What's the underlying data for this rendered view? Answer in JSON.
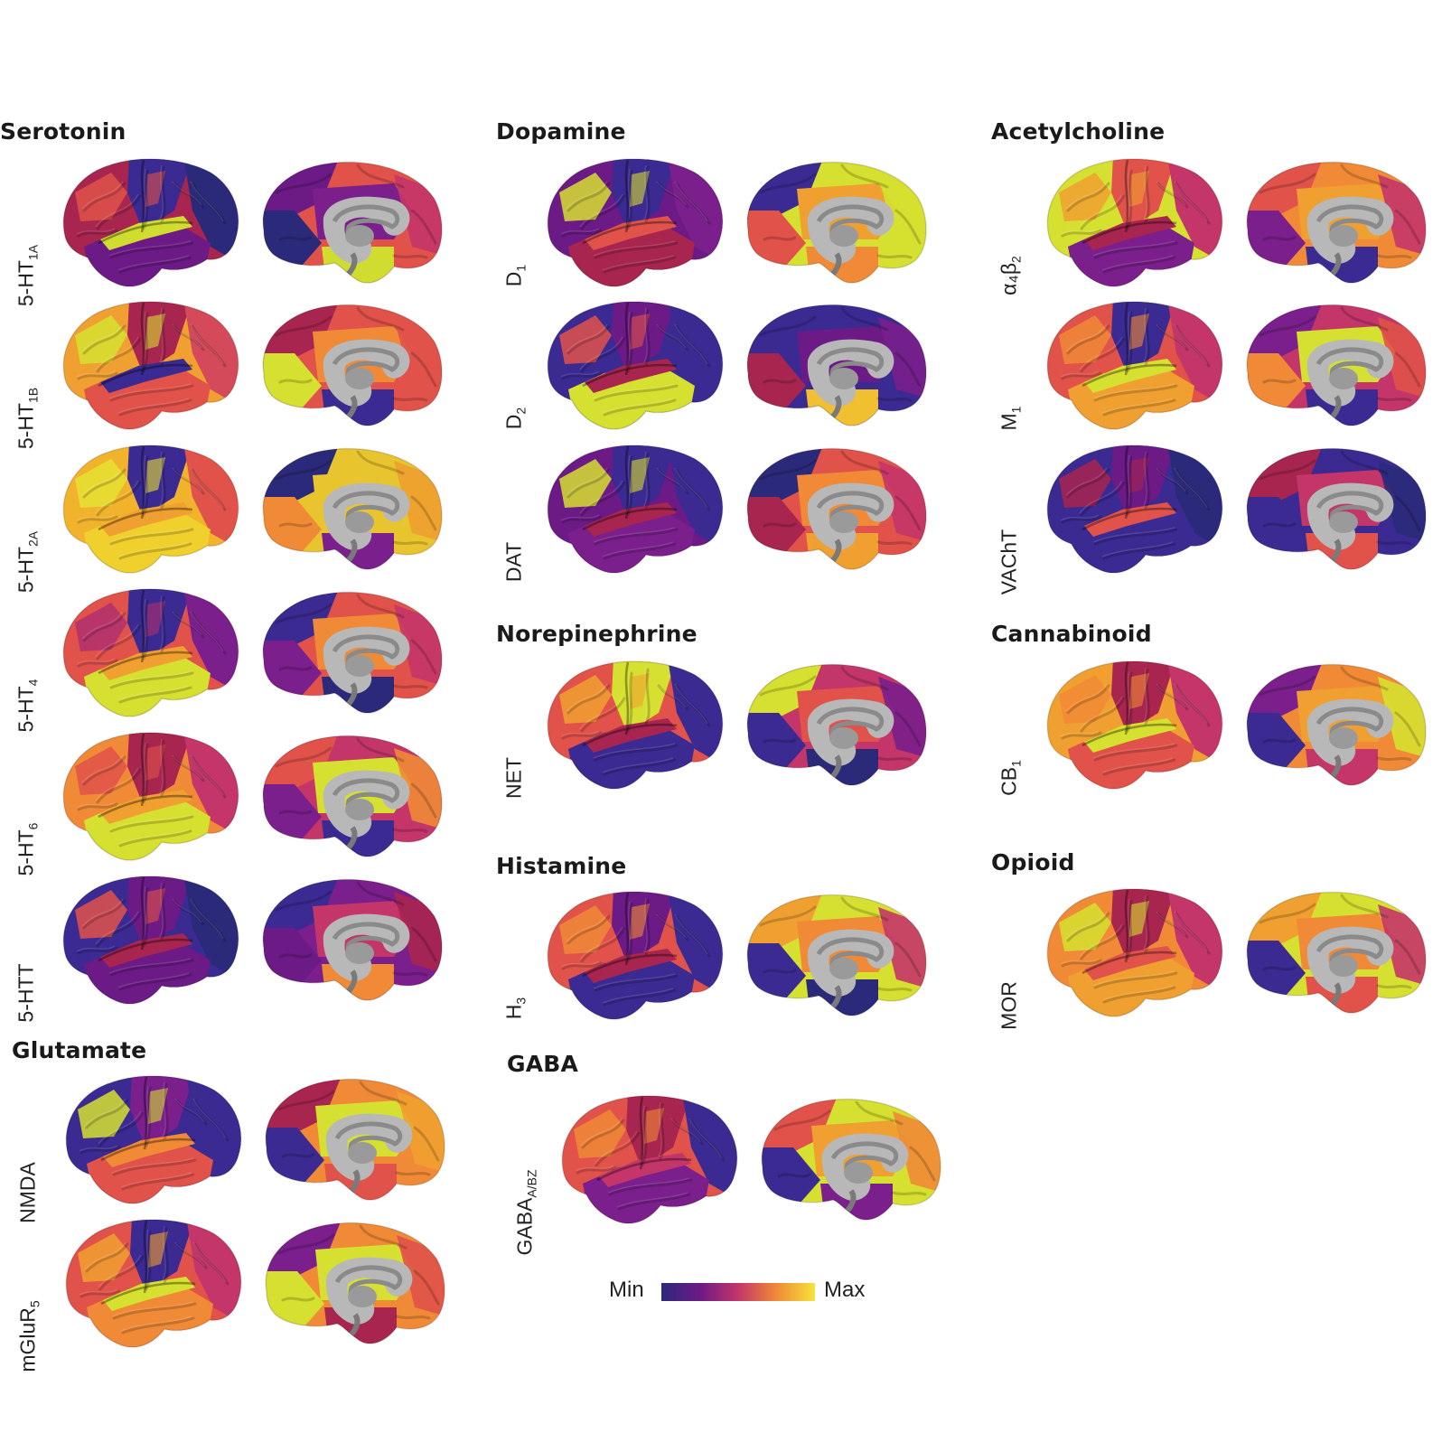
{
  "groups": [
    {
      "id": "serotonin",
      "title": "Serotonin",
      "rows": [
        {
          "main": "5-HT",
          "sub": "1A",
          "lat": {
            "front": "#a8254f",
            "parietal": "#3a2a92",
            "temporal": "#6c1a86",
            "sup_temporal": "#d0dd30",
            "occipital": "#2b2a7a",
            "accent": "#e0524a"
          },
          "med": {
            "front": "#e0524a",
            "parietal": "#6c1a86",
            "occipital": "#2b2a7a",
            "cingulate": "#7a1f8c",
            "temporal": "#d0dd30",
            "accent": "#c4356a"
          }
        },
        {
          "main": "5-HT",
          "sub": "1B",
          "lat": {
            "front": "#f0a030",
            "parietal": "#a8254f",
            "temporal": "#e0524a",
            "sup_temporal": "#3a2a92",
            "occipital": "#d44a5a",
            "accent": "#d6e030"
          },
          "med": {
            "front": "#e0524a",
            "parietal": "#a8254f",
            "occipital": "#d6e030",
            "cingulate": "#f08a36",
            "temporal": "#3a2a92",
            "accent": "#e0524a"
          }
        },
        {
          "main": "5-HT",
          "sub": "2A",
          "lat": {
            "front": "#f2b32c",
            "parietal": "#3a2a92",
            "temporal": "#f0d02c",
            "sup_temporal": "#f0a030",
            "occipital": "#e0524a",
            "accent": "#e8e034"
          },
          "med": {
            "front": "#e8c42e",
            "parietal": "#2b2a7a",
            "occipital": "#f08a36",
            "cingulate": "#e8c42e",
            "temporal": "#7a1f8c",
            "accent": "#f0a030"
          }
        },
        {
          "main": "5-HT",
          "sub": "4",
          "lat": {
            "front": "#e0524a",
            "parietal": "#3a2a92",
            "temporal": "#d6e030",
            "sup_temporal": "#f0a030",
            "occipital": "#7a1f8c",
            "accent": "#b0306e"
          },
          "med": {
            "front": "#e0524a",
            "parietal": "#3a2a92",
            "occipital": "#7a1f8c",
            "cingulate": "#f08a36",
            "temporal": "#2b2a7a",
            "accent": "#c4356a"
          }
        },
        {
          "main": "5-HT",
          "sub": "6",
          "lat": {
            "front": "#f08a36",
            "parietal": "#a8254f",
            "temporal": "#d6e030",
            "sup_temporal": "#f0a030",
            "occipital": "#c4356a",
            "accent": "#e0524a"
          },
          "med": {
            "front": "#c4356a",
            "parietal": "#e0524a",
            "occipital": "#7a1f8c",
            "cingulate": "#d6e030",
            "temporal": "#3a2a92",
            "accent": "#f08a36"
          }
        },
        {
          "main": "5-HTT",
          "sub": "",
          "lat": {
            "front": "#3a2a92",
            "parietal": "#6c1a86",
            "temporal": "#6c1a86",
            "sup_temporal": "#a8254f",
            "occipital": "#2b2a7a",
            "accent": "#e0524a"
          },
          "med": {
            "front": "#7a1f8c",
            "parietal": "#3a2a92",
            "occipital": "#6c1a86",
            "cingulate": "#c4356a",
            "temporal": "#f08a36",
            "accent": "#a8254f"
          }
        }
      ]
    },
    {
      "id": "dopamine",
      "title": "Dopamine",
      "rows": [
        {
          "main": "D",
          "sub": "1",
          "lat": {
            "front": "#6c1a86",
            "parietal": "#3a2a92",
            "temporal": "#a8254f",
            "sup_temporal": "#e0524a",
            "occipital": "#7a1f8c",
            "accent": "#d6e030"
          },
          "med": {
            "front": "#d6e030",
            "parietal": "#3a2a92",
            "occipital": "#e0524a",
            "cingulate": "#f0a030",
            "temporal": "#f08a36",
            "accent": "#d6e030"
          }
        },
        {
          "main": "D",
          "sub": "2",
          "lat": {
            "front": "#3a2a92",
            "parietal": "#6c1a86",
            "temporal": "#d6e030",
            "sup_temporal": "#a8254f",
            "occipital": "#3a2a92",
            "accent": "#e0524a"
          },
          "med": {
            "front": "#3a2a92",
            "parietal": "#3a2a92",
            "occipital": "#a8254f",
            "cingulate": "#6c1a86",
            "temporal": "#f0c030",
            "accent": "#7a1f8c"
          }
        },
        {
          "main": "DAT",
          "sub": "",
          "lat": {
            "front": "#6c1a86",
            "parietal": "#3a2a92",
            "temporal": "#7a1f8c",
            "sup_temporal": "#a8254f",
            "occipital": "#3a2a92",
            "accent": "#d6e030"
          },
          "med": {
            "front": "#e0524a",
            "parietal": "#2b2a7a",
            "occipital": "#a8254f",
            "cingulate": "#f08a36",
            "temporal": "#f0a030",
            "accent": "#c4356a"
          }
        }
      ]
    },
    {
      "id": "acetylcholine",
      "title": "Acetylcholine",
      "rows": [
        {
          "main": "α₄β",
          "sub": "2",
          "lat": {
            "front": "#d6e030",
            "parietal": "#e0524a",
            "temporal": "#7a1f8c",
            "sup_temporal": "#a8254f",
            "occipital": "#c4356a",
            "accent": "#f0a030"
          },
          "med": {
            "front": "#f08a36",
            "parietal": "#e0524a",
            "occipital": "#7a1f8c",
            "cingulate": "#f0a030",
            "temporal": "#3a2a92",
            "accent": "#c4356a"
          }
        },
        {
          "main": "M",
          "sub": "1",
          "lat": {
            "front": "#e0524a",
            "parietal": "#3a2a92",
            "temporal": "#f0a030",
            "sup_temporal": "#d6e030",
            "occipital": "#c4356a",
            "accent": "#f08a36"
          },
          "med": {
            "front": "#c4356a",
            "parietal": "#7a1f8c",
            "occipital": "#f08a36",
            "cingulate": "#d6e030",
            "temporal": "#3a2a92",
            "accent": "#e0524a"
          }
        },
        {
          "main": "VAChT",
          "sub": "",
          "lat": {
            "front": "#3a2a92",
            "parietal": "#6c1a86",
            "temporal": "#3a2a92",
            "sup_temporal": "#e0524a",
            "occipital": "#2b2a7a",
            "accent": "#a8254f"
          },
          "med": {
            "front": "#3a2a92",
            "parietal": "#a8254f",
            "occipital": "#3a2a92",
            "cingulate": "#c4356a",
            "temporal": "#e0524a",
            "accent": "#2b2a7a"
          }
        }
      ]
    },
    {
      "id": "norepinephrine",
      "title": "Norepinephrine",
      "rows": [
        {
          "main": "NET",
          "sub": "",
          "lat": {
            "front": "#e0524a",
            "parietal": "#d6e030",
            "temporal": "#3a2a92",
            "sup_temporal": "#a8254f",
            "occipital": "#3a2a92",
            "accent": "#f0a030"
          },
          "med": {
            "front": "#c4356a",
            "parietal": "#d6e030",
            "occipital": "#3a2a92",
            "cingulate": "#e0524a",
            "temporal": "#2b2a7a",
            "accent": "#7a1f8c"
          }
        }
      ]
    },
    {
      "id": "cannabinoid",
      "title": "Cannabinoid",
      "rows": [
        {
          "main": "CB",
          "sub": "1",
          "lat": {
            "front": "#f0a030",
            "parietal": "#a8254f",
            "temporal": "#e0524a",
            "sup_temporal": "#d6e030",
            "occipital": "#c4356a",
            "accent": "#f08a36"
          },
          "med": {
            "front": "#f08a36",
            "parietal": "#7a1f8c",
            "occipital": "#3a2a92",
            "cingulate": "#f0a030",
            "temporal": "#c4356a",
            "accent": "#d6e030"
          }
        }
      ]
    },
    {
      "id": "histamine",
      "title": "Histamine",
      "rows": [
        {
          "main": "H",
          "sub": "3",
          "lat": {
            "front": "#e0524a",
            "parietal": "#6c1a86",
            "temporal": "#3a2a92",
            "sup_temporal": "#a8254f",
            "occipital": "#3a2a92",
            "accent": "#f08a36"
          },
          "med": {
            "front": "#d6e030",
            "parietal": "#f0a030",
            "occipital": "#3a2a92",
            "cingulate": "#f08a36",
            "temporal": "#2b2a7a",
            "accent": "#c4356a"
          }
        }
      ]
    },
    {
      "id": "opioid",
      "title": "Opioid",
      "rows": [
        {
          "main": "MOR",
          "sub": "",
          "lat": {
            "front": "#f08a36",
            "parietal": "#a8254f",
            "temporal": "#f0a030",
            "sup_temporal": "#e0524a",
            "occipital": "#c4356a",
            "accent": "#d6e030"
          },
          "med": {
            "front": "#d6e030",
            "parietal": "#f0a030",
            "occipital": "#3a2a92",
            "cingulate": "#f08a36",
            "temporal": "#e0524a",
            "accent": "#c4356a"
          }
        }
      ]
    },
    {
      "id": "glutamate",
      "title": "Glutamate",
      "rows": [
        {
          "main": "NMDA",
          "sub": "",
          "lat": {
            "front": "#3a2a92",
            "parietal": "#7a1f8c",
            "temporal": "#e0524a",
            "sup_temporal": "#f08a36",
            "occipital": "#3a2a92",
            "accent": "#d6e030"
          },
          "med": {
            "front": "#f08a36",
            "parietal": "#a8254f",
            "occipital": "#3a2a92",
            "cingulate": "#d6e030",
            "temporal": "#e0524a",
            "accent": "#f0a030"
          }
        },
        {
          "main": "mGluR",
          "sub": "5",
          "lat": {
            "front": "#e0524a",
            "parietal": "#3a2a92",
            "temporal": "#f08a36",
            "sup_temporal": "#d6e030",
            "occipital": "#c4356a",
            "accent": "#f0a030"
          },
          "med": {
            "front": "#f08a36",
            "parietal": "#7a1f8c",
            "occipital": "#d6e030",
            "cingulate": "#d6e030",
            "temporal": "#a8254f",
            "accent": "#e0524a"
          }
        }
      ]
    },
    {
      "id": "gaba",
      "title": "GABA",
      "rows": [
        {
          "main": "GABA",
          "sub": "A/BZ",
          "lat": {
            "front": "#e0524a",
            "parietal": "#a8254f",
            "temporal": "#7a1f8c",
            "sup_temporal": "#c4356a",
            "occipital": "#3a2a92",
            "accent": "#f08a36"
          },
          "med": {
            "front": "#d6e030",
            "parietal": "#e0524a",
            "occipital": "#3a2a92",
            "cingulate": "#f0a030",
            "temporal": "#7a1f8c",
            "accent": "#f08a36"
          }
        }
      ]
    }
  ],
  "legend": {
    "min_label": "Min",
    "max_label": "Max",
    "colors": [
      "#2b2a7a",
      "#6c1a86",
      "#c4356a",
      "#f08a36",
      "#f5e33a"
    ]
  }
}
